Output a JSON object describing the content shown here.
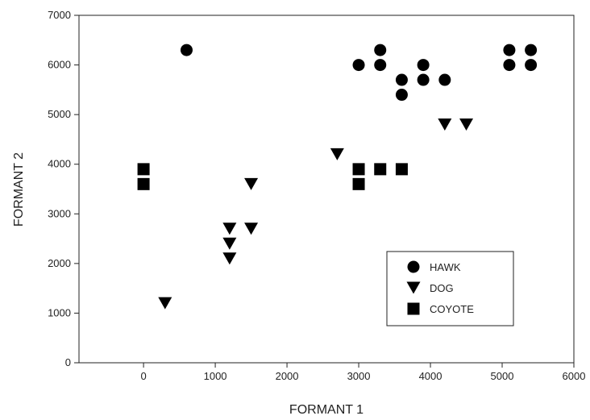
{
  "chart_data": {
    "type": "scatter",
    "xlabel": "FORMANT 1",
    "ylabel": "FORMANT 2",
    "xlim": [
      -900,
      6000
    ],
    "ylim": [
      0,
      7000
    ],
    "xticks": [
      0,
      1000,
      2000,
      3000,
      4000,
      5000,
      6000
    ],
    "yticks": [
      0,
      1000,
      2000,
      3000,
      4000,
      5000,
      6000,
      7000
    ],
    "legend_position": "bottom-right",
    "series": [
      {
        "name": "HAWK",
        "marker": "circle",
        "color": "#000000",
        "points": [
          [
            600,
            6300
          ],
          [
            3000,
            6000
          ],
          [
            3300,
            6300
          ],
          [
            3300,
            6000
          ],
          [
            3600,
            5700
          ],
          [
            3600,
            5400
          ],
          [
            3900,
            6000
          ],
          [
            3900,
            5700
          ],
          [
            4200,
            5700
          ],
          [
            5100,
            6300
          ],
          [
            5100,
            6000
          ],
          [
            5400,
            6300
          ],
          [
            5400,
            6000
          ]
        ]
      },
      {
        "name": "DOG",
        "marker": "triangle-down",
        "color": "#000000",
        "points": [
          [
            300,
            1200
          ],
          [
            1200,
            2700
          ],
          [
            1200,
            2400
          ],
          [
            1200,
            2100
          ],
          [
            1500,
            3600
          ],
          [
            1500,
            2700
          ],
          [
            2700,
            4200
          ],
          [
            4200,
            4800
          ],
          [
            4500,
            4800
          ]
        ]
      },
      {
        "name": "COYOTE",
        "marker": "square",
        "color": "#000000",
        "points": [
          [
            0,
            3900
          ],
          [
            0,
            3600
          ],
          [
            3000,
            3900
          ],
          [
            3000,
            3600
          ],
          [
            3300,
            3900
          ],
          [
            3600,
            3900
          ]
        ]
      }
    ]
  }
}
